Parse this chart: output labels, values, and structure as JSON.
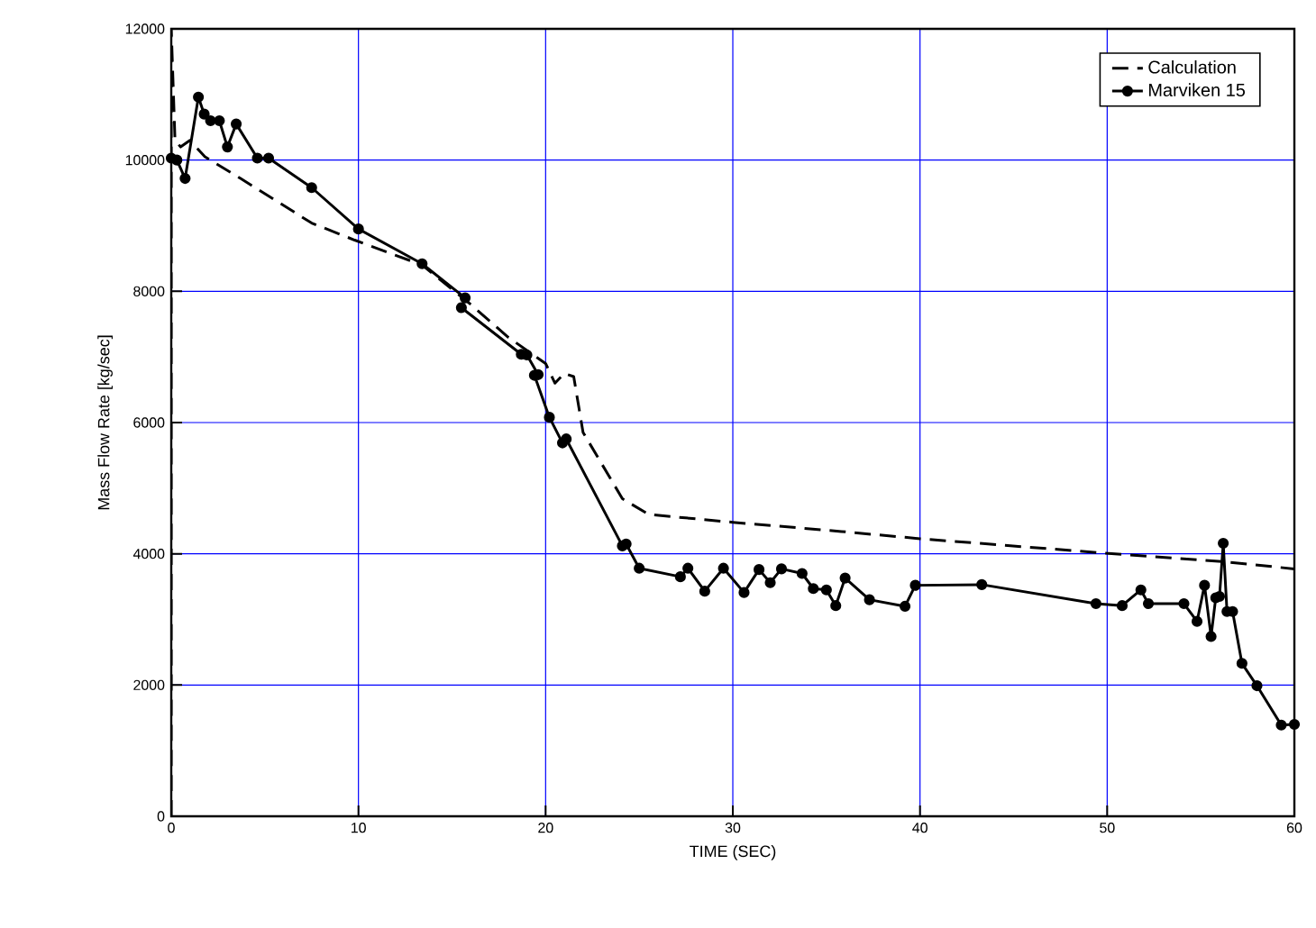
{
  "chart_data": {
    "type": "line",
    "xlabel": "TIME (SEC)",
    "ylabel": "Mass Flow Rate [kg/sec]",
    "xlim": [
      0,
      60
    ],
    "xticks": [
      0,
      10,
      20,
      30,
      40,
      50,
      60
    ],
    "ylim": [
      0,
      12000
    ],
    "yticks": [
      0,
      2000,
      4000,
      6000,
      8000,
      10000,
      12000
    ],
    "grid": true,
    "legend": "top right",
    "series": [
      {
        "name": "Calculation",
        "color": "#000000",
        "line_style": "dashed",
        "marker": "none",
        "x": [
          0,
          0,
          0.2,
          0.5,
          1,
          1.8,
          3.7,
          7.5,
          9.8,
          13.4,
          16,
          18,
          20,
          20.5,
          21,
          21.5,
          22,
          24.1,
          25.5,
          30,
          35.8,
          40,
          49.9,
          56.2,
          60
        ],
        "values": [
          0,
          12000,
          10300,
          10200,
          10300,
          10050,
          9720,
          9040,
          8780,
          8400,
          7800,
          7300,
          6900,
          6600,
          6750,
          6700,
          5850,
          4840,
          4600,
          4480,
          4340,
          4230,
          4010,
          3880,
          3770
        ]
      },
      {
        "name": "Marviken 15",
        "color": "#000000",
        "line_style": "solid",
        "marker": "circle",
        "x": [
          0,
          0.3,
          0.74,
          1.45,
          1.76,
          2.1,
          2.57,
          3.0,
          3.47,
          4.6,
          5.2,
          7.5,
          10.0,
          13.4,
          15.7,
          15.5,
          18.7,
          19.0,
          19.6,
          19.4,
          20.2,
          20.9,
          21.1,
          24.1,
          24.3,
          25.0,
          27.2,
          27.6,
          28.5,
          29.5,
          30.6,
          31.4,
          32.0,
          32.6,
          33.7,
          34.3,
          35.0,
          35.5,
          36.0,
          37.3,
          39.2,
          39.75,
          43.3,
          49.4,
          50.8,
          51.8,
          52.2,
          54.1,
          54.8,
          55.2,
          55.55,
          55.8,
          56.0,
          56.2,
          56.4,
          56.7,
          57.2,
          58.0,
          59.3,
          60
        ],
        "values": [
          10030,
          10000,
          9720,
          10960,
          10700,
          10600,
          10600,
          10200,
          10550,
          10030,
          10030,
          9580,
          8950,
          8420,
          7900,
          7750,
          7040,
          7030,
          6730,
          6720,
          6080,
          5690,
          5750,
          4120,
          4150,
          3780,
          3650,
          3780,
          3430,
          3780,
          3410,
          3760,
          3560,
          3770,
          3700,
          3470,
          3450,
          3210,
          3630,
          3300,
          3200,
          3520,
          3530,
          3240,
          3210,
          3450,
          3240,
          3240,
          2970,
          3520,
          2740,
          3330,
          3350,
          4160,
          3120,
          3120,
          2330,
          1990,
          1390,
          1400
        ]
      }
    ]
  }
}
